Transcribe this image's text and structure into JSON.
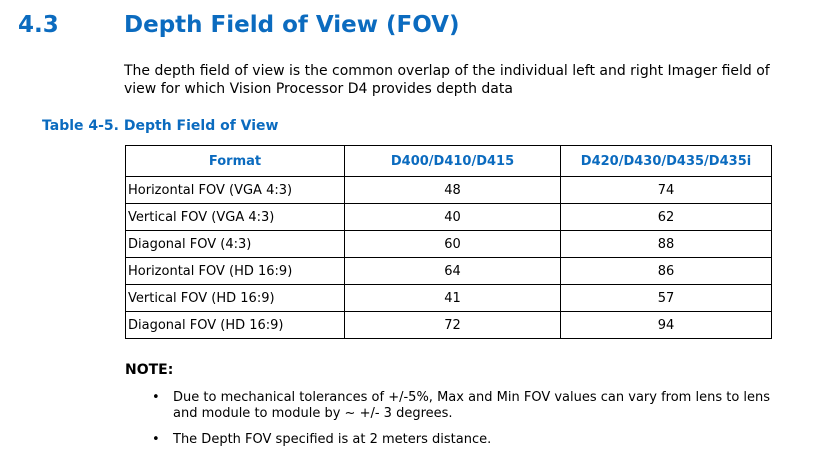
{
  "section": {
    "number": "4.3",
    "title": "Depth Field of View (FOV)",
    "intro": "The depth field of view is the common overlap of the individual left and right Imager field of view for which Vision Processor D4 provides depth data"
  },
  "table": {
    "caption": "Table 4-5. Depth Field of View",
    "headers": [
      "Format",
      "D400/D410/D415",
      "D420/D430/D435/D435i"
    ],
    "rows": [
      [
        "Horizontal FOV (VGA 4:3)",
        "48",
        "74"
      ],
      [
        "Vertical FOV (VGA 4:3)",
        "40",
        "62"
      ],
      [
        "Diagonal FOV (4:3)",
        "60",
        "88"
      ],
      [
        "Horizontal FOV (HD 16:9)",
        "64",
        "86"
      ],
      [
        "Vertical FOV (HD 16:9)",
        "41",
        "57"
      ],
      [
        "Diagonal FOV (HD 16:9)",
        "72",
        "94"
      ]
    ]
  },
  "note": {
    "title": "NOTE:",
    "items": [
      "Due to mechanical tolerances of +/-5%, Max and Min FOV values can vary from lens to lens and module to module by ~ +/- 3 degrees.",
      "The Depth FOV specified is at 2 meters distance."
    ]
  },
  "colors": {
    "heading": "#0b6bbf"
  }
}
